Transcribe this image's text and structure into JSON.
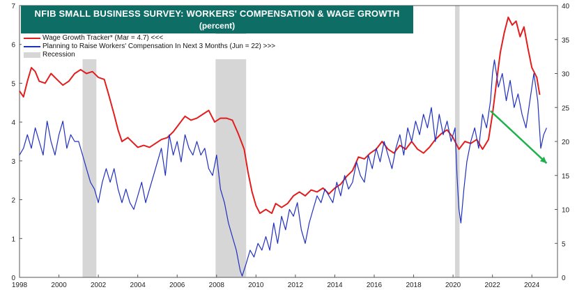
{
  "title": "NFIB SMALL BUSINESS SURVEY: WORKERS' COMPENSATION & WAGE GROWTH",
  "subtitle": "(percent)",
  "colors": {
    "title_bg": "#0e6e66",
    "red": "#e31d1d",
    "blue": "#1f2fbf",
    "green": "#1db14a",
    "recession": "#d6d6d6"
  },
  "chart_data": {
    "type": "line",
    "title": "NFIB SMALL BUSINESS SURVEY: WORKERS' COMPENSATION & WAGE GROWTH",
    "subtitle": "(percent)",
    "x_range": [
      1998,
      2025.3
    ],
    "x_ticks": [
      1998,
      2000,
      2002,
      2004,
      2006,
      2008,
      2010,
      2012,
      2014,
      2016,
      2018,
      2020,
      2022,
      2024
    ],
    "y_left": {
      "range": [
        0,
        7
      ],
      "ticks": [
        0,
        1,
        2,
        3,
        4,
        5,
        6,
        7
      ]
    },
    "y_right": {
      "range": [
        0,
        40
      ],
      "ticks": [
        0,
        5,
        10,
        15,
        20,
        25,
        30,
        35,
        40
      ]
    },
    "legend_position": "top-left",
    "series": [
      {
        "name": "Wage Growth Tracker* (Mar = 4.7) <<<",
        "axis": "left",
        "color": "#e31d1d",
        "points": [
          [
            1998.0,
            4.8
          ],
          [
            1998.2,
            4.65
          ],
          [
            1998.4,
            5.05
          ],
          [
            1998.6,
            5.4
          ],
          [
            1998.8,
            5.3
          ],
          [
            1999.0,
            5.05
          ],
          [
            1999.3,
            5.0
          ],
          [
            1999.6,
            5.25
          ],
          [
            1999.9,
            5.1
          ],
          [
            2000.2,
            4.95
          ],
          [
            2000.5,
            5.05
          ],
          [
            2000.8,
            5.25
          ],
          [
            2001.1,
            5.35
          ],
          [
            2001.4,
            5.25
          ],
          [
            2001.7,
            5.3
          ],
          [
            2002.0,
            5.15
          ],
          [
            2002.3,
            5.1
          ],
          [
            2002.5,
            4.75
          ],
          [
            2002.8,
            4.2
          ],
          [
            2003.0,
            3.8
          ],
          [
            2003.2,
            3.5
          ],
          [
            2003.5,
            3.6
          ],
          [
            2003.8,
            3.45
          ],
          [
            2004.0,
            3.35
          ],
          [
            2004.3,
            3.4
          ],
          [
            2004.6,
            3.35
          ],
          [
            2004.9,
            3.45
          ],
          [
            2005.2,
            3.55
          ],
          [
            2005.5,
            3.6
          ],
          [
            2005.8,
            3.75
          ],
          [
            2006.1,
            3.95
          ],
          [
            2006.4,
            4.15
          ],
          [
            2006.7,
            4.05
          ],
          [
            2007.0,
            4.1
          ],
          [
            2007.3,
            4.2
          ],
          [
            2007.6,
            4.3
          ],
          [
            2007.9,
            4.0
          ],
          [
            2008.2,
            4.1
          ],
          [
            2008.5,
            4.1
          ],
          [
            2008.8,
            4.05
          ],
          [
            2009.1,
            3.7
          ],
          [
            2009.4,
            3.3
          ],
          [
            2009.6,
            2.7
          ],
          [
            2009.8,
            2.2
          ],
          [
            2010.0,
            1.85
          ],
          [
            2010.2,
            1.65
          ],
          [
            2010.5,
            1.75
          ],
          [
            2010.8,
            1.65
          ],
          [
            2011.0,
            1.9
          ],
          [
            2011.3,
            1.8
          ],
          [
            2011.6,
            1.9
          ],
          [
            2011.9,
            2.1
          ],
          [
            2012.2,
            2.2
          ],
          [
            2012.5,
            2.1
          ],
          [
            2012.8,
            2.25
          ],
          [
            2013.1,
            2.2
          ],
          [
            2013.4,
            2.3
          ],
          [
            2013.7,
            2.15
          ],
          [
            2014.0,
            2.3
          ],
          [
            2014.3,
            2.4
          ],
          [
            2014.6,
            2.6
          ],
          [
            2014.9,
            2.75
          ],
          [
            2015.2,
            3.1
          ],
          [
            2015.5,
            3.05
          ],
          [
            2015.8,
            3.2
          ],
          [
            2016.1,
            3.3
          ],
          [
            2016.4,
            3.5
          ],
          [
            2016.7,
            3.3
          ],
          [
            2017.0,
            3.2
          ],
          [
            2017.3,
            3.4
          ],
          [
            2017.6,
            3.3
          ],
          [
            2017.9,
            3.5
          ],
          [
            2018.2,
            3.3
          ],
          [
            2018.5,
            3.2
          ],
          [
            2018.8,
            3.35
          ],
          [
            2019.1,
            3.55
          ],
          [
            2019.4,
            3.7
          ],
          [
            2019.7,
            3.8
          ],
          [
            2020.0,
            3.6
          ],
          [
            2020.3,
            3.3
          ],
          [
            2020.6,
            3.5
          ],
          [
            2020.9,
            3.45
          ],
          [
            2021.2,
            3.55
          ],
          [
            2021.5,
            3.3
          ],
          [
            2021.8,
            3.55
          ],
          [
            2022.0,
            4.2
          ],
          [
            2022.2,
            5.0
          ],
          [
            2022.4,
            5.8
          ],
          [
            2022.6,
            6.3
          ],
          [
            2022.8,
            6.7
          ],
          [
            2023.0,
            6.5
          ],
          [
            2023.2,
            6.6
          ],
          [
            2023.4,
            6.2
          ],
          [
            2023.6,
            6.45
          ],
          [
            2023.8,
            5.9
          ],
          [
            2024.0,
            5.4
          ],
          [
            2024.1,
            5.3
          ],
          [
            2024.25,
            5.15
          ],
          [
            2024.4,
            4.7
          ]
        ]
      },
      {
        "name": "Planning to Raise Workers' Compensation In Next 3 Months (Jun = 22) >>>",
        "axis": "right",
        "color": "#1f2fbf",
        "points": [
          [
            1998.0,
            18
          ],
          [
            1998.2,
            19
          ],
          [
            1998.4,
            21
          ],
          [
            1998.6,
            19
          ],
          [
            1998.8,
            22
          ],
          [
            1999.0,
            20
          ],
          [
            1999.2,
            18
          ],
          [
            1999.4,
            23
          ],
          [
            1999.6,
            20
          ],
          [
            1999.8,
            18
          ],
          [
            2000.0,
            21
          ],
          [
            2000.2,
            23
          ],
          [
            2000.4,
            19
          ],
          [
            2000.6,
            21
          ],
          [
            2000.8,
            20
          ],
          [
            2001.0,
            20
          ],
          [
            2001.2,
            18
          ],
          [
            2001.4,
            16
          ],
          [
            2001.6,
            14
          ],
          [
            2001.8,
            13
          ],
          [
            2002.0,
            11
          ],
          [
            2002.2,
            14
          ],
          [
            2002.4,
            16
          ],
          [
            2002.6,
            14
          ],
          [
            2002.8,
            16
          ],
          [
            2003.0,
            13
          ],
          [
            2003.2,
            11
          ],
          [
            2003.4,
            13
          ],
          [
            2003.6,
            11
          ],
          [
            2003.8,
            10
          ],
          [
            2004.0,
            12
          ],
          [
            2004.2,
            14
          ],
          [
            2004.4,
            11
          ],
          [
            2004.6,
            13
          ],
          [
            2004.8,
            15
          ],
          [
            2005.0,
            17
          ],
          [
            2005.2,
            19
          ],
          [
            2005.4,
            15
          ],
          [
            2005.6,
            21
          ],
          [
            2005.8,
            18
          ],
          [
            2006.0,
            20
          ],
          [
            2006.2,
            17
          ],
          [
            2006.4,
            21
          ],
          [
            2006.6,
            19
          ],
          [
            2006.8,
            18
          ],
          [
            2007.0,
            20
          ],
          [
            2007.2,
            18
          ],
          [
            2007.4,
            19
          ],
          [
            2007.6,
            16
          ],
          [
            2007.8,
            15
          ],
          [
            2008.0,
            18
          ],
          [
            2008.2,
            13
          ],
          [
            2008.4,
            11
          ],
          [
            2008.6,
            8
          ],
          [
            2008.8,
            6
          ],
          [
            2009.0,
            4
          ],
          [
            2009.2,
            1
          ],
          [
            2009.3,
            0.2
          ],
          [
            2009.5,
            2
          ],
          [
            2009.7,
            4
          ],
          [
            2009.9,
            3
          ],
          [
            2010.1,
            5
          ],
          [
            2010.3,
            4
          ],
          [
            2010.5,
            6
          ],
          [
            2010.7,
            4
          ],
          [
            2010.9,
            8
          ],
          [
            2011.1,
            5
          ],
          [
            2011.3,
            9
          ],
          [
            2011.5,
            7
          ],
          [
            2011.7,
            10
          ],
          [
            2011.9,
            9
          ],
          [
            2012.1,
            11
          ],
          [
            2012.3,
            7
          ],
          [
            2012.5,
            5
          ],
          [
            2012.7,
            8
          ],
          [
            2012.9,
            10
          ],
          [
            2013.1,
            12
          ],
          [
            2013.3,
            11
          ],
          [
            2013.5,
            13
          ],
          [
            2013.7,
            12
          ],
          [
            2013.9,
            11
          ],
          [
            2014.1,
            14
          ],
          [
            2014.3,
            12
          ],
          [
            2014.5,
            15
          ],
          [
            2014.7,
            13
          ],
          [
            2014.9,
            14
          ],
          [
            2015.1,
            17
          ],
          [
            2015.3,
            15
          ],
          [
            2015.5,
            14
          ],
          [
            2015.7,
            18
          ],
          [
            2015.9,
            16
          ],
          [
            2016.1,
            19
          ],
          [
            2016.3,
            17
          ],
          [
            2016.5,
            20
          ],
          [
            2016.7,
            18
          ],
          [
            2016.9,
            16
          ],
          [
            2017.1,
            19
          ],
          [
            2017.3,
            21
          ],
          [
            2017.5,
            18
          ],
          [
            2017.7,
            22
          ],
          [
            2017.9,
            20
          ],
          [
            2018.1,
            23
          ],
          [
            2018.3,
            21
          ],
          [
            2018.5,
            24
          ],
          [
            2018.7,
            22
          ],
          [
            2018.9,
            25
          ],
          [
            2019.1,
            20
          ],
          [
            2019.3,
            24
          ],
          [
            2019.5,
            21
          ],
          [
            2019.7,
            23
          ],
          [
            2019.9,
            20
          ],
          [
            2020.1,
            22
          ],
          [
            2020.2,
            15
          ],
          [
            2020.3,
            10
          ],
          [
            2020.4,
            8
          ],
          [
            2020.55,
            13
          ],
          [
            2020.7,
            17
          ],
          [
            2020.9,
            20
          ],
          [
            2021.1,
            22
          ],
          [
            2021.3,
            19
          ],
          [
            2021.5,
            24
          ],
          [
            2021.7,
            22
          ],
          [
            2021.9,
            26
          ],
          [
            2022.0,
            30
          ],
          [
            2022.1,
            32
          ],
          [
            2022.3,
            28
          ],
          [
            2022.5,
            30
          ],
          [
            2022.7,
            26
          ],
          [
            2022.9,
            29
          ],
          [
            2023.1,
            25
          ],
          [
            2023.3,
            27
          ],
          [
            2023.5,
            24
          ],
          [
            2023.7,
            22
          ],
          [
            2023.9,
            26
          ],
          [
            2024.1,
            30
          ],
          [
            2024.3,
            26
          ],
          [
            2024.45,
            19
          ],
          [
            2024.6,
            21
          ],
          [
            2024.75,
            22
          ]
        ]
      }
    ],
    "recessions": [
      {
        "name": "Recession",
        "start": 2001.2,
        "end": 2001.9
      },
      {
        "start": 2007.95,
        "end": 2009.5
      },
      {
        "start": 2020.1,
        "end": 2020.33
      }
    ],
    "trend_arrow": {
      "color": "#1db14a",
      "from": [
        2021.9,
        24.5
      ],
      "to": [
        2024.75,
        16.8
      ],
      "axis": "right"
    }
  }
}
